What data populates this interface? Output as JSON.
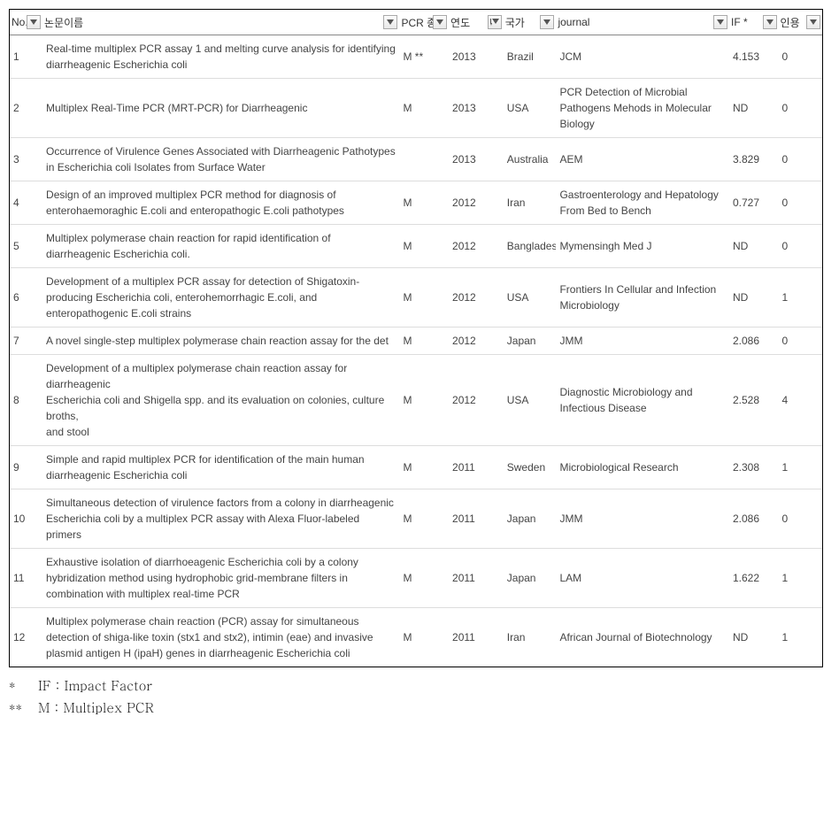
{
  "columns": {
    "no": "No.",
    "title": "논문이름",
    "pcr": "PCR 종류",
    "year": "연도",
    "country": "국가",
    "journal": "journal",
    "if": "IF *",
    "cite": "인용"
  },
  "rows": [
    {
      "no": "1",
      "title": "Real-time multiplex PCR assay 1 and melting curve analysis for identifying diarrheagenic Escherichia coli",
      "pcr": "M **",
      "year": "2013",
      "country": "Brazil",
      "journal": "JCM",
      "if": "4.153",
      "cite": "0"
    },
    {
      "no": "2",
      "title": "Multiplex Real-Time PCR (MRT-PCR) for Diarrheagenic",
      "pcr": "M",
      "year": "2013",
      "country": "USA",
      "journal": "PCR Detection of Microbial Pathogens Mehods in Molecular Biology",
      "if": "ND",
      "cite": "0"
    },
    {
      "no": "3",
      "title": "Occurrence of Virulence Genes Associated with Diarrheagenic Pathotypes in Escherichia coli Isolates from Surface Water",
      "pcr": "",
      "year": "2013",
      "country": "Australia",
      "journal": "AEM",
      "if": "3.829",
      "cite": "0"
    },
    {
      "no": "4",
      "title": "Design of an improved multiplex PCR method for diagnosis of enterohaemoraghic E.coli and enteropathogic E.coli pathotypes",
      "pcr": "M",
      "year": "2012",
      "country": "Iran",
      "journal": "Gastroenterology and Hepatology From Bed to Bench",
      "if": "0.727",
      "cite": "0"
    },
    {
      "no": "5",
      "title": "Multiplex polymerase chain reaction for rapid identification of diarrheagenic Escherichia coli.",
      "pcr": "M",
      "year": "2012",
      "country": "Bangladesh",
      "journal": "Mymensingh Med J",
      "if": "ND",
      "cite": "0"
    },
    {
      "no": "6",
      "title": "Development of a multiplex PCR assay for detection of Shigatoxin-producing Escherichia coli, enterohemorrhagic E.coli, and enteropathogenic E.coli strains",
      "pcr": "M",
      "year": "2012",
      "country": "USA",
      "journal": "Frontiers In Cellular and Infection Microbiology",
      "if": "ND",
      "cite": "1"
    },
    {
      "no": "7",
      "title": "A novel single-step multiplex polymerase chain reaction assay for the det",
      "pcr": "M",
      "year": "2012",
      "country": "Japan",
      "journal": "JMM",
      "if": "2.086",
      "cite": "0"
    },
    {
      "no": "8",
      "title": "Development of a multiplex polymerase chain reaction assay for diarrheagenic\nEscherichia coli and Shigella spp. and its evaluation on colonies, culture broths,\nand stool",
      "pcr": "M",
      "year": "2012",
      "country": "USA",
      "journal": "Diagnostic Microbiology and Infectious Disease",
      "if": "2.528",
      "cite": "4"
    },
    {
      "no": "9",
      "title": "Simple and rapid multiplex PCR for identification of the main human diarrheagenic Escherichia coli",
      "pcr": "M",
      "year": "2011",
      "country": "Sweden",
      "journal": "Microbiological Research",
      "if": "2.308",
      "cite": "1"
    },
    {
      "no": "10",
      "title": "Simultaneous detection of virulence factors from a colony in diarrheagenic\nEscherichia coli by a multiplex PCR assay with Alexa Fluor-labeled primers",
      "pcr": "M",
      "year": "2011",
      "country": "Japan",
      "journal": "JMM",
      "if": "2.086",
      "cite": "0"
    },
    {
      "no": "11",
      "title": "Exhaustive isolation of diarrhoeagenic Escherichia coli by a colony hybridization method using hydrophobic grid-membrane filters in combination with multiplex real-time PCR",
      "pcr": "M",
      "year": "2011",
      "country": "Japan",
      "journal": "LAM",
      "if": "1.622",
      "cite": "1"
    },
    {
      "no": "12",
      "title": "Multiplex polymerase chain reaction (PCR) assay for simultaneous detection of shiga-like toxin (stx1 and stx2), intimin (eae) and invasive plasmid antigen H (ipaH) genes in diarrheagenic Escherichia coli",
      "pcr": "M",
      "year": "2011",
      "country": "Iran",
      "journal": "African Journal of Biotechnology",
      "if": "ND",
      "cite": "1"
    }
  ],
  "footnotes": {
    "f1": {
      "mark": "*",
      "text": "IF : Impact Factor"
    },
    "f2": {
      "mark": "**",
      "text": "M : Multiplex PCR"
    }
  },
  "style": {
    "border_color": "#000000",
    "row_border_color": "#dddddd",
    "header_border_color": "#888888",
    "text_color": "#444444",
    "background": "#ffffff",
    "dropdown_border": "#aaaaaa"
  }
}
